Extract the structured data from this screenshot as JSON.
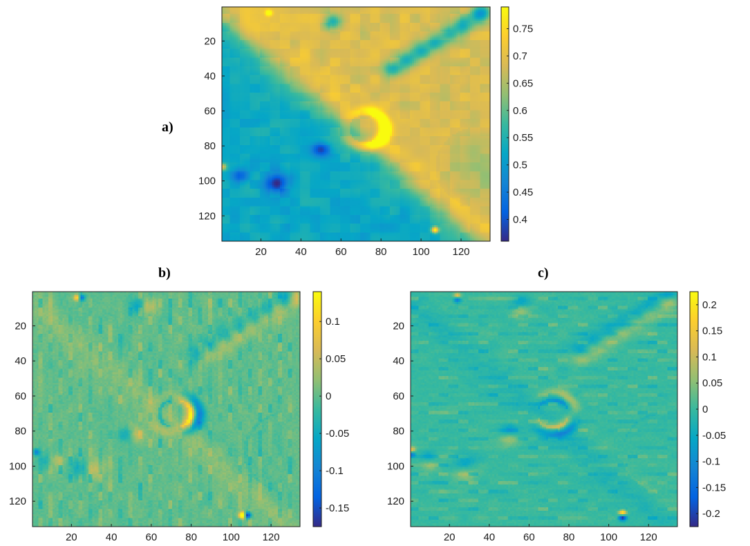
{
  "panels": {
    "a": {
      "label": "a)"
    },
    "b": {
      "label": "b)"
    },
    "c": {
      "label": "c)"
    }
  },
  "chart_data": [
    {
      "type": "heatmap",
      "panel": "a)",
      "title": "",
      "xlabel": "",
      "ylabel": "",
      "xlim": [
        0.5,
        134.5
      ],
      "ylim": [
        0.5,
        134.5
      ],
      "y_reversed": true,
      "xticks": [
        20,
        40,
        60,
        80,
        100,
        120
      ],
      "yticks": [
        20,
        40,
        60,
        80,
        100,
        120
      ],
      "colormap": "parula",
      "colorbar": {
        "range": [
          0.36,
          0.79
        ],
        "ticks": [
          0.4,
          0.45,
          0.5,
          0.55,
          0.6,
          0.65,
          0.7,
          0.75
        ]
      },
      "background_value": 0.52,
      "features": [
        {
          "kind": "upper_left_plateau",
          "value": 0.69
        },
        {
          "kind": "diagonal_ridge_band",
          "value": 0.57
        },
        {
          "kind": "crater_rim",
          "center": [
            72,
            70
          ],
          "value": 0.76
        },
        {
          "kind": "pit",
          "center": [
            28,
            101
          ],
          "value": 0.38
        },
        {
          "kind": "pit",
          "center": [
            56,
            9
          ],
          "value": 0.4
        },
        {
          "kind": "pit",
          "center": [
            50,
            82
          ],
          "value": 0.41
        },
        {
          "kind": "pit_chain",
          "from": [
            85,
            35
          ],
          "to": [
            130,
            3
          ],
          "value": 0.42
        },
        {
          "kind": "large_depression",
          "center": [
            128,
            90
          ],
          "value": 0.47
        },
        {
          "kind": "bright_spot",
          "center": [
            107,
            128
          ],
          "value": 0.77
        }
      ]
    },
    {
      "type": "heatmap",
      "panel": "b)",
      "title": "",
      "xlabel": "",
      "ylabel": "",
      "xlim": [
        0.5,
        134.5
      ],
      "ylim": [
        0.5,
        134.5
      ],
      "y_reversed": true,
      "xticks": [
        20,
        40,
        60,
        80,
        100,
        120
      ],
      "yticks": [
        20,
        40,
        60,
        80,
        100,
        120
      ],
      "colormap": "parula",
      "colorbar": {
        "range": [
          -0.175,
          0.14
        ],
        "ticks": [
          -0.15,
          -0.1,
          -0.05,
          0,
          0.05,
          0.1
        ]
      },
      "background_value": 0,
      "features": [
        {
          "kind": "horizontal_gradient_of_a",
          "note": "edges along x"
        },
        {
          "kind": "crater_edge_negative",
          "center": [
            83,
            70
          ],
          "value": -0.16
        },
        {
          "kind": "crater_edge_positive",
          "center": [
            62,
            70
          ],
          "value": 0.1
        },
        {
          "kind": "pit_edges",
          "center": [
            57,
            13
          ],
          "value": 0.12
        }
      ]
    },
    {
      "type": "heatmap",
      "panel": "c)",
      "title": "",
      "xlabel": "",
      "ylabel": "",
      "xlim": [
        0.5,
        134.5
      ],
      "ylim": [
        0.5,
        134.5
      ],
      "y_reversed": true,
      "xticks": [
        20,
        40,
        60,
        80,
        100,
        120
      ],
      "yticks": [
        20,
        40,
        60,
        80,
        100,
        120
      ],
      "colormap": "parula",
      "colorbar": {
        "range": [
          -0.225,
          0.225
        ],
        "ticks": [
          -0.2,
          -0.15,
          -0.1,
          -0.05,
          0,
          0.05,
          0.1,
          0.15,
          0.2
        ]
      },
      "background_value": 0,
      "features": [
        {
          "kind": "vertical_gradient_of_a",
          "note": "edges along y"
        },
        {
          "kind": "crater_edge_positive",
          "center": [
            72,
            58
          ],
          "value": 0.2
        },
        {
          "kind": "crater_edge_negative",
          "center": [
            75,
            84
          ],
          "value": -0.18
        },
        {
          "kind": "pit_edges",
          "center": [
            55,
            17
          ],
          "value": 0.15
        }
      ]
    }
  ]
}
